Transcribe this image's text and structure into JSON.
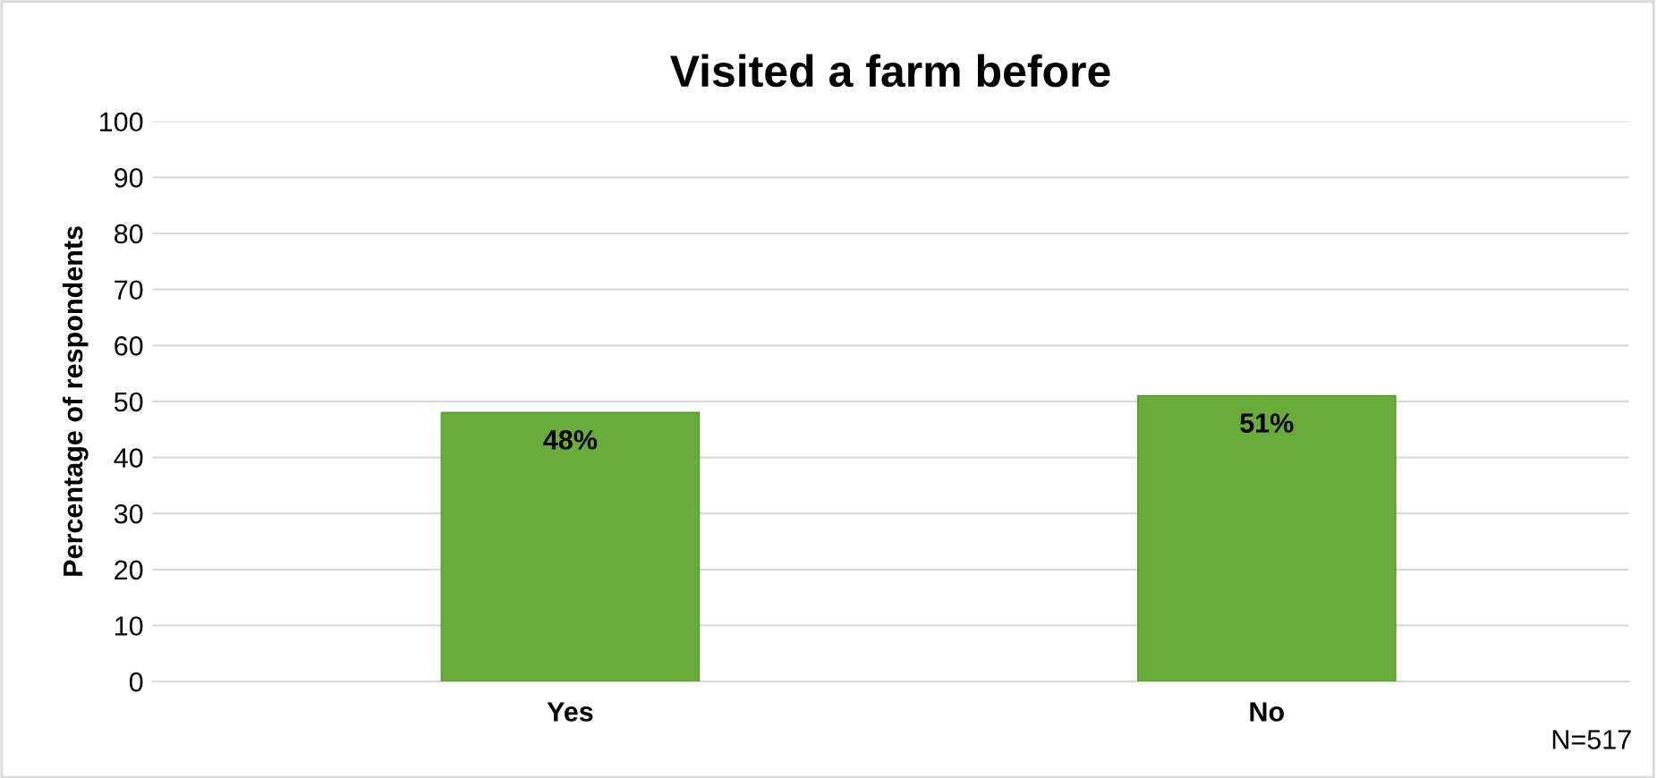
{
  "chart_data": {
    "type": "bar",
    "title": "Visited a farm before",
    "ylabel": "Percentage of respondents",
    "categories": [
      "Yes",
      "No"
    ],
    "values": [
      48,
      51
    ],
    "value_labels": [
      "48%",
      "51%"
    ],
    "color": "#6aac3c",
    "ylim": [
      0,
      100
    ],
    "yticks": [
      0,
      10,
      20,
      30,
      40,
      50,
      60,
      70,
      80,
      90,
      100
    ],
    "grid": "y",
    "legend": false,
    "annotations": [
      "N=517"
    ]
  }
}
